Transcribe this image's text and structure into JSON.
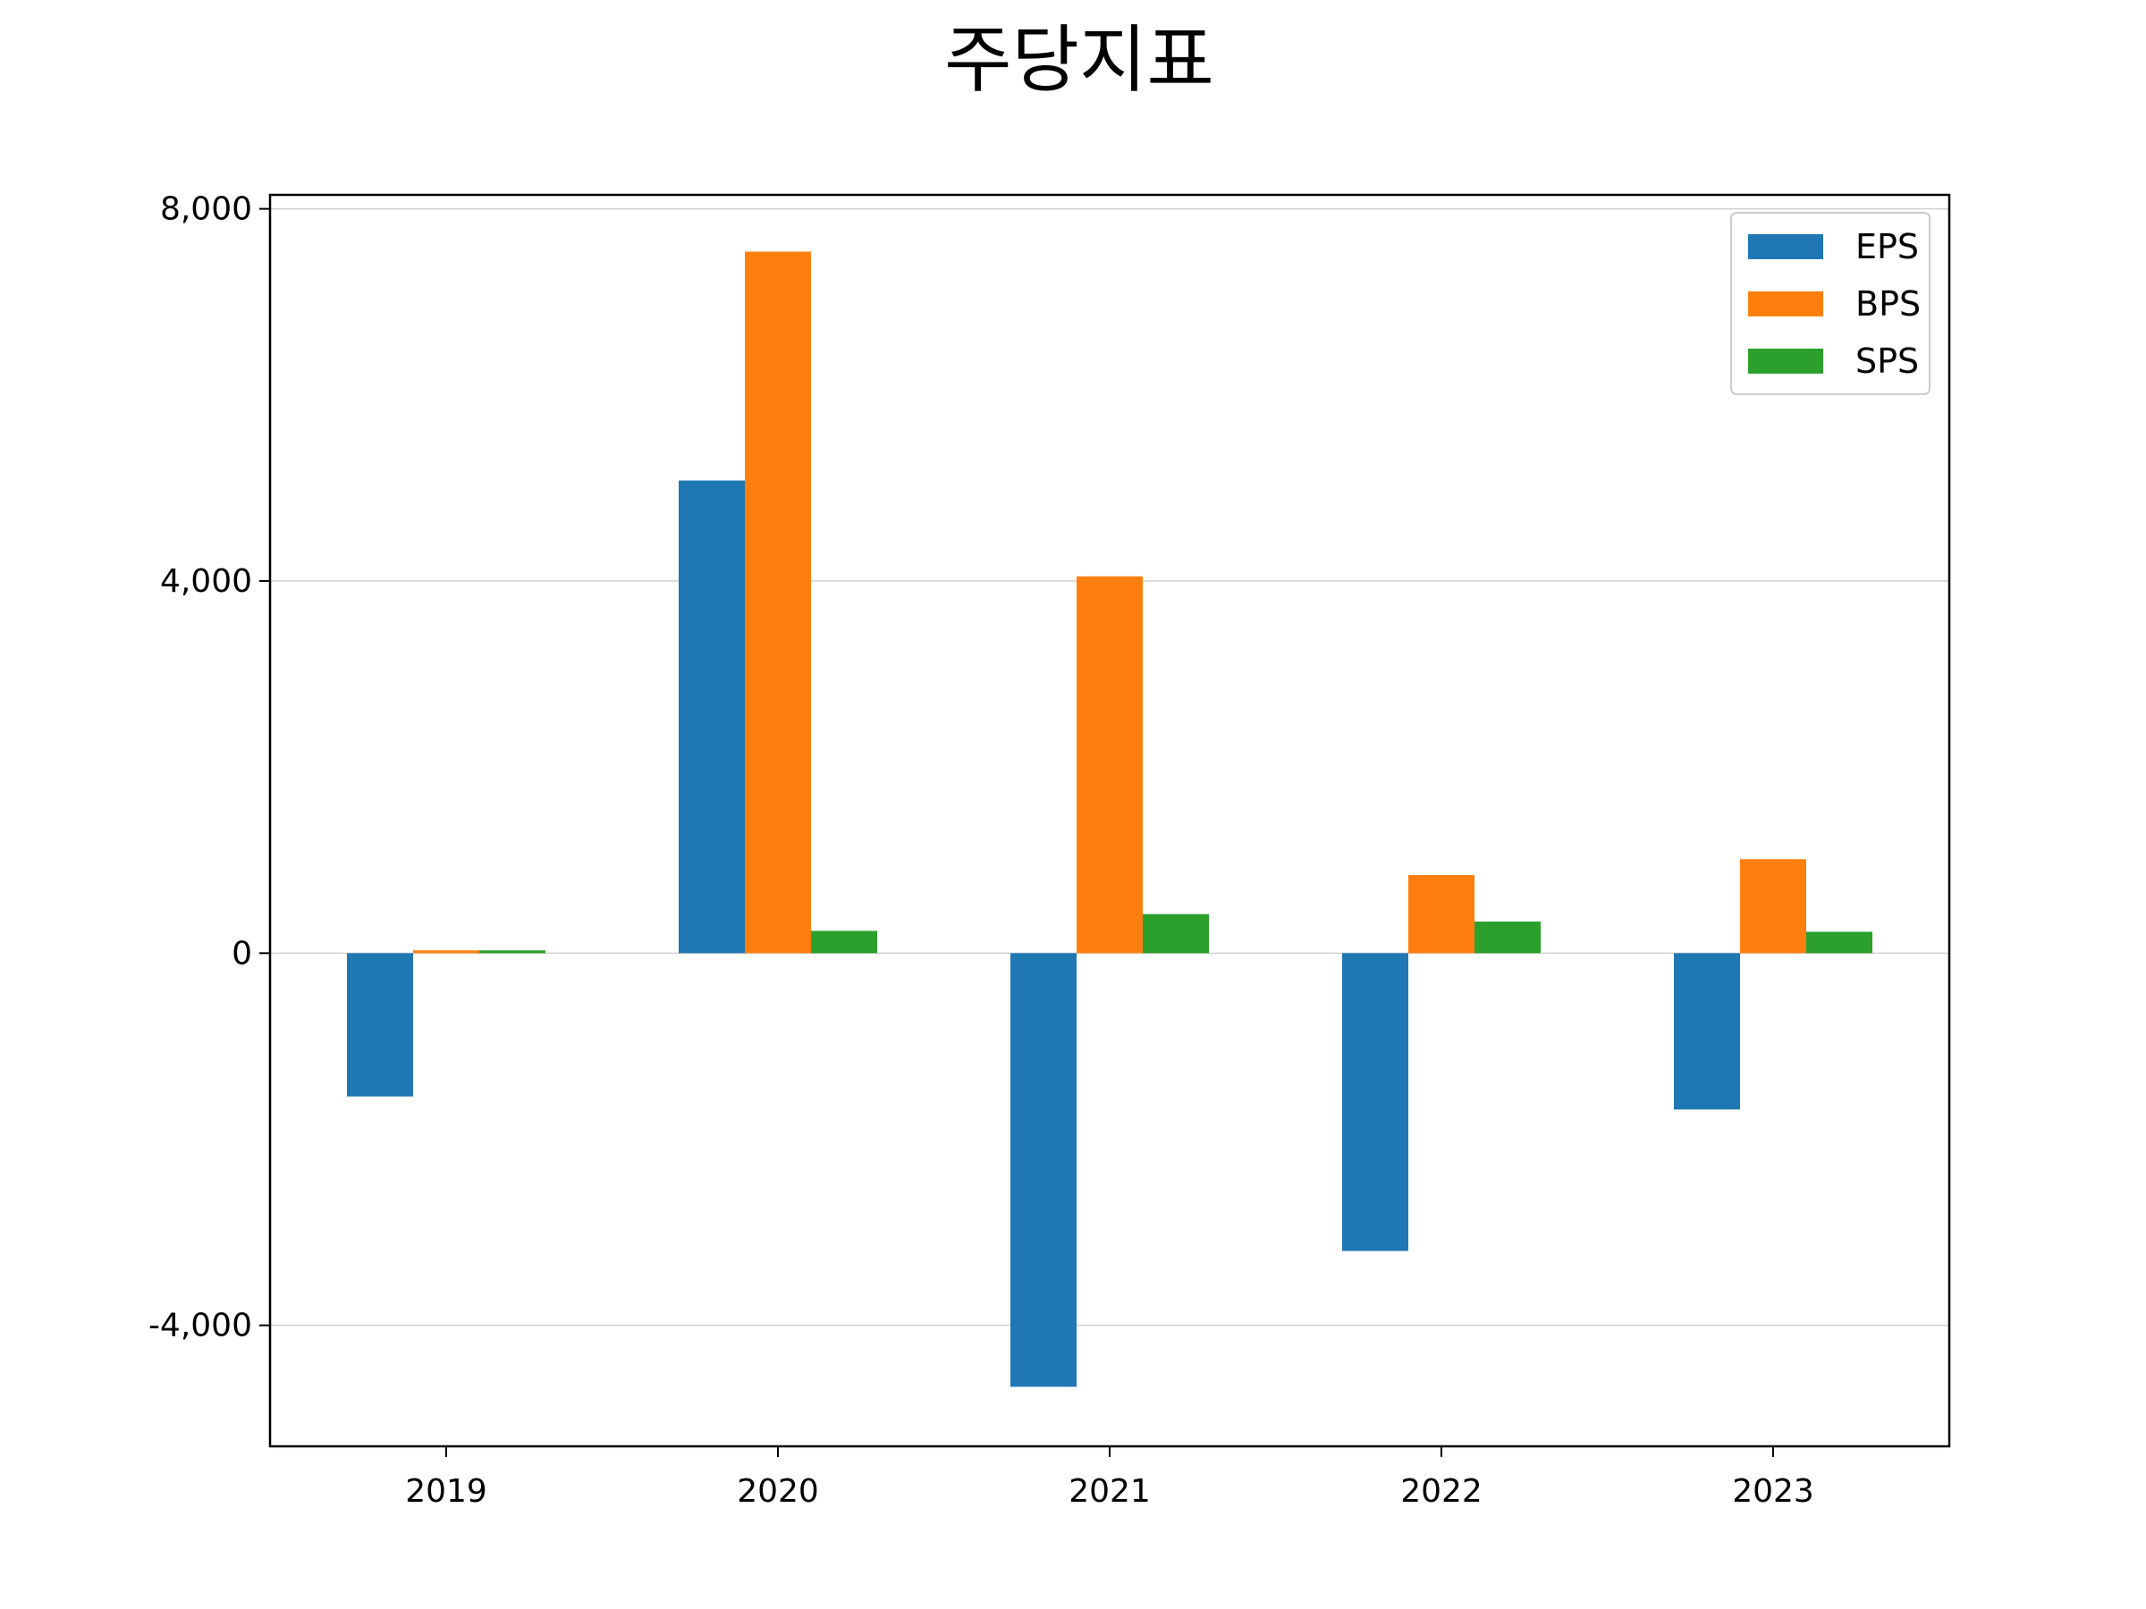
{
  "chart_data": {
    "type": "bar",
    "title": "주당지표",
    "xlabel": "",
    "ylabel": "",
    "categories": [
      "2019",
      "2020",
      "2021",
      "2022",
      "2023"
    ],
    "series": [
      {
        "name": "EPS",
        "color": "#1f77b4",
        "values": [
          -1540,
          5080,
          -4660,
          -3200,
          -1680
        ]
      },
      {
        "name": "BPS",
        "color": "#ff7f0e",
        "values": [
          30,
          7540,
          4050,
          840,
          1010
        ]
      },
      {
        "name": "SPS",
        "color": "#2ca02c",
        "values": [
          30,
          240,
          420,
          340,
          230
        ]
      }
    ],
    "ylim": [
      -5300,
      8150
    ],
    "yticks": [
      {
        "value": -4000,
        "label": "-4,000"
      },
      {
        "value": 0,
        "label": "0"
      },
      {
        "value": 4000,
        "label": "4,000"
      },
      {
        "value": 8000,
        "label": "8,000"
      }
    ],
    "grid": "y",
    "legend_position": "top-right"
  }
}
